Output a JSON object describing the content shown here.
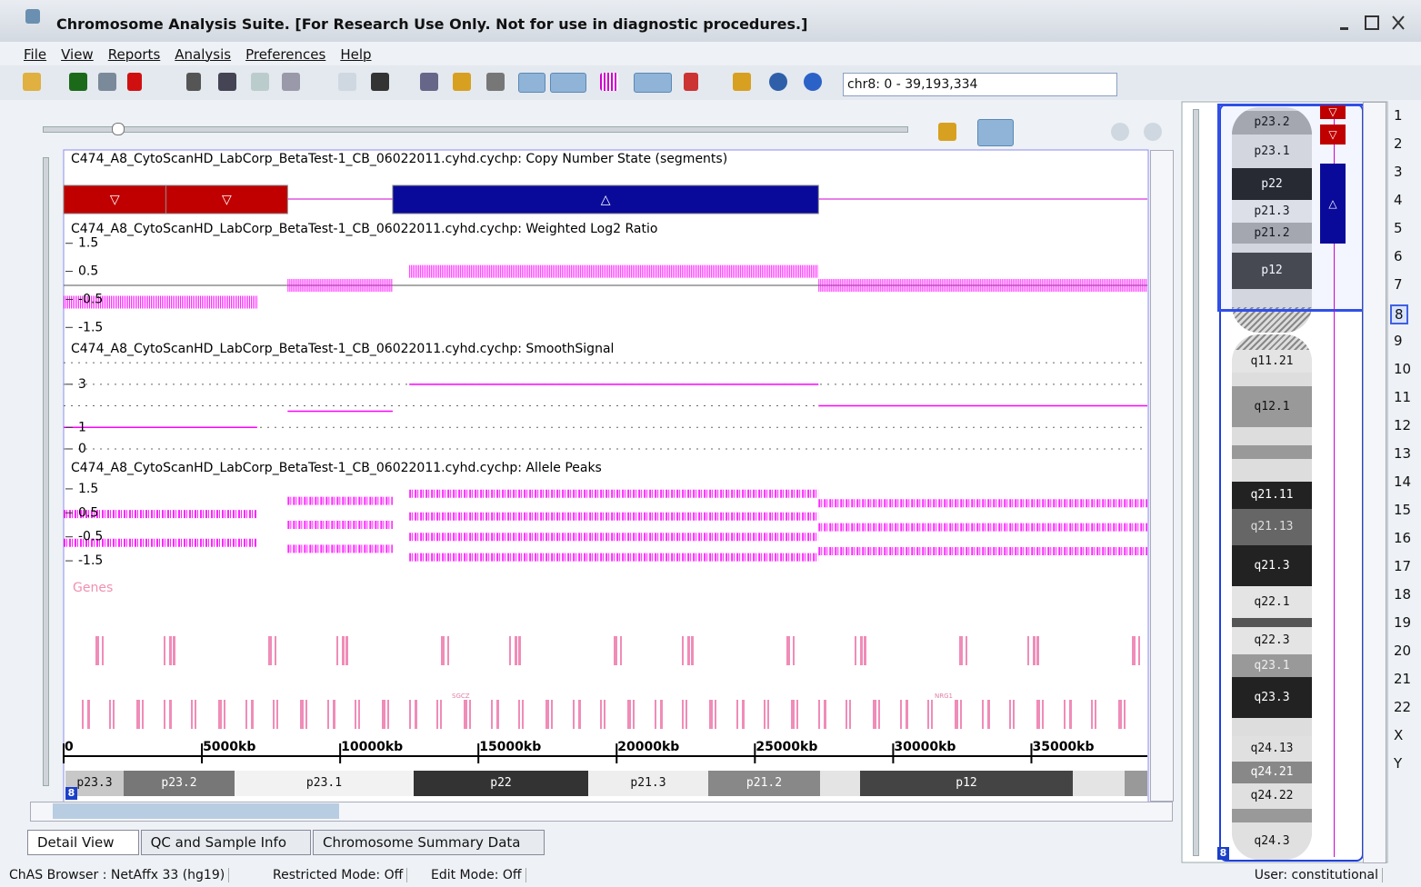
{
  "window": {
    "title": "Chromosome Analysis Suite. [For Research Use Only. Not for use in diagnostic procedures.]"
  },
  "menu": [
    "File",
    "View",
    "Reports",
    "Analysis",
    "Preferences",
    "Help"
  ],
  "location": "chr8: 0 - 39,193,334",
  "tracks": {
    "xlim": [
      0,
      39193
    ],
    "xticks": [
      0,
      {
        "value": 5000,
        "label": "5000kb"
      },
      {
        "value": 10000,
        "label": "10000kb"
      },
      {
        "value": 15000,
        "label": "15000kb"
      },
      {
        "value": 20000,
        "label": "20000kb"
      },
      {
        "value": 25000,
        "label": "25000kb"
      },
      {
        "value": 30000,
        "label": "30000kb"
      },
      {
        "value": 35000,
        "label": "35000kb"
      }
    ],
    "copy_number": {
      "title": "C474_A8_CytoScanHD_LabCorp_BetaTest-1_CB_06022011.cyhd.cychp: Copy Number State (segments)",
      "segments": [
        {
          "start": 0,
          "end": 3700,
          "color": "#c00000",
          "symbol": "▽"
        },
        {
          "start": 3700,
          "end": 8100,
          "color": "#c00000",
          "symbol": "▽"
        },
        {
          "start": 11900,
          "end": 27300,
          "color": "#0a0a9a",
          "symbol": "△"
        }
      ]
    },
    "log2": {
      "title": "C474_A8_CytoScanHD_LabCorp_BetaTest-1_CB_06022011.cyhd.cychp: Weighted Log2 Ratio",
      "ylim": [
        -1.75,
        1.75
      ],
      "yticks": [
        1.5,
        0.5,
        -0.5,
        -1.5
      ],
      "color": "#ff00ff",
      "segments": [
        {
          "start": 0,
          "end": 7000,
          "value": -0.6
        },
        {
          "start": 8100,
          "end": 11900,
          "value": 0
        },
        {
          "start": 12500,
          "end": 27300,
          "value": 0.5
        },
        {
          "start": 27300,
          "end": 39193,
          "value": 0
        }
      ]
    },
    "smooth": {
      "title": "C474_A8_CytoScanHD_LabCorp_BetaTest-1_CB_06022011.cyhd.cychp: SmoothSignal",
      "ylim": [
        -0.17,
        4.3
      ],
      "yticks": [
        3,
        1,
        0
      ],
      "grid": [
        0,
        1,
        2,
        3,
        4
      ],
      "color": "#ff00ff",
      "segments": [
        {
          "start": 0,
          "end": 7000,
          "value": 1
        },
        {
          "start": 8100,
          "end": 11900,
          "value": 1.75
        },
        {
          "start": 12500,
          "end": 27300,
          "value": 3
        },
        {
          "start": 27300,
          "end": 39193,
          "value": 2
        }
      ]
    },
    "allele": {
      "title": "C474_A8_CytoScanHD_LabCorp_BetaTest-1_CB_06022011.cyhd.cychp: Allele Peaks",
      "ylim": [
        -1.8,
        1.8
      ],
      "yticks": [
        1.5,
        0.5,
        -0.5,
        -1.5
      ],
      "color": "#ff00ff",
      "segments": [
        {
          "start": 0,
          "end": 7000,
          "peaks": [
            0.45,
            -0.75
          ]
        },
        {
          "start": 8100,
          "end": 11900,
          "peaks": [
            1,
            0,
            -1
          ]
        },
        {
          "start": 12500,
          "end": 27300,
          "peaks": [
            1.3,
            0.35,
            -0.5,
            -1.35
          ]
        },
        {
          "start": 27300,
          "end": 39193,
          "peaks": [
            0.9,
            -0.1,
            -1.1
          ]
        }
      ]
    },
    "genes": {
      "title": "Genes",
      "labels": [
        "SGCZ",
        "NRG1"
      ]
    }
  },
  "cytobands": [
    "p23.3",
    "p23.2",
    "p23.1",
    "p22",
    "p21.3",
    "p21.2",
    "p12"
  ],
  "chromosome_badge": "8",
  "ideogram": [
    "p23.2",
    "p23.1",
    "p22",
    "p21.3",
    "p21.2",
    "p12",
    "q11.21",
    "q12.1",
    "q21.11",
    "q21.13",
    "q21.3",
    "q22.1",
    "q22.3",
    "q23.1",
    "q23.3",
    "q24.13",
    "q24.21",
    "q24.22",
    "q24.3"
  ],
  "chromosomes": [
    "1",
    "2",
    "3",
    "4",
    "5",
    "6",
    "7",
    "8",
    "9",
    "10",
    "11",
    "12",
    "13",
    "14",
    "15",
    "16",
    "17",
    "18",
    "19",
    "20",
    "21",
    "22",
    "X",
    "Y"
  ],
  "tabs": [
    "Detail View",
    "QC and Sample Info",
    "Chromosome Summary Data"
  ],
  "status": [
    "ChAS Browser : NetAffx 33 (hg19)",
    "Restricted Mode: Off",
    "Edit Mode: Off",
    "User: constitutional"
  ]
}
